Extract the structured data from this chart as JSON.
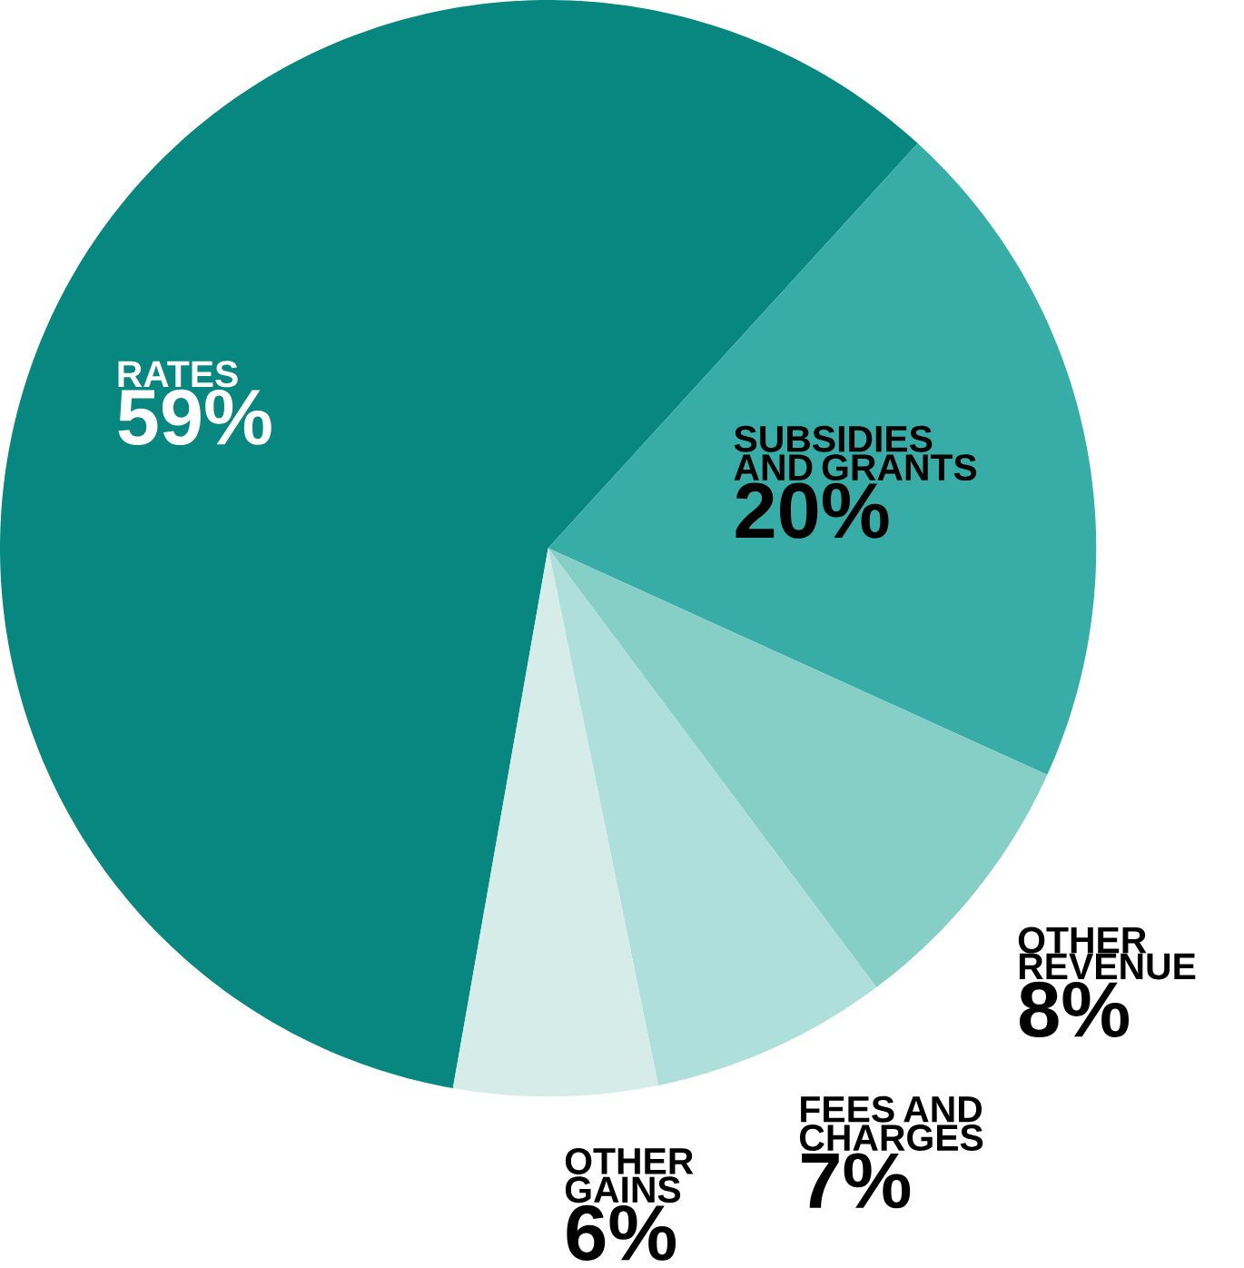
{
  "chart_data": {
    "type": "pie",
    "categories": [
      "RATES",
      "SUBSIDIES AND GRANTS",
      "OTHER REVENUE",
      "FEES AND CHARGES",
      "OTHER GAINS"
    ],
    "values": [
      59,
      20,
      8,
      7,
      6
    ],
    "colors": [
      "#078780",
      "#38ada7",
      "#86cfc6",
      "#afdfdb",
      "#d5ece8"
    ],
    "value_labels": [
      "59%",
      "20%",
      "8%",
      "7%",
      "6%"
    ]
  }
}
